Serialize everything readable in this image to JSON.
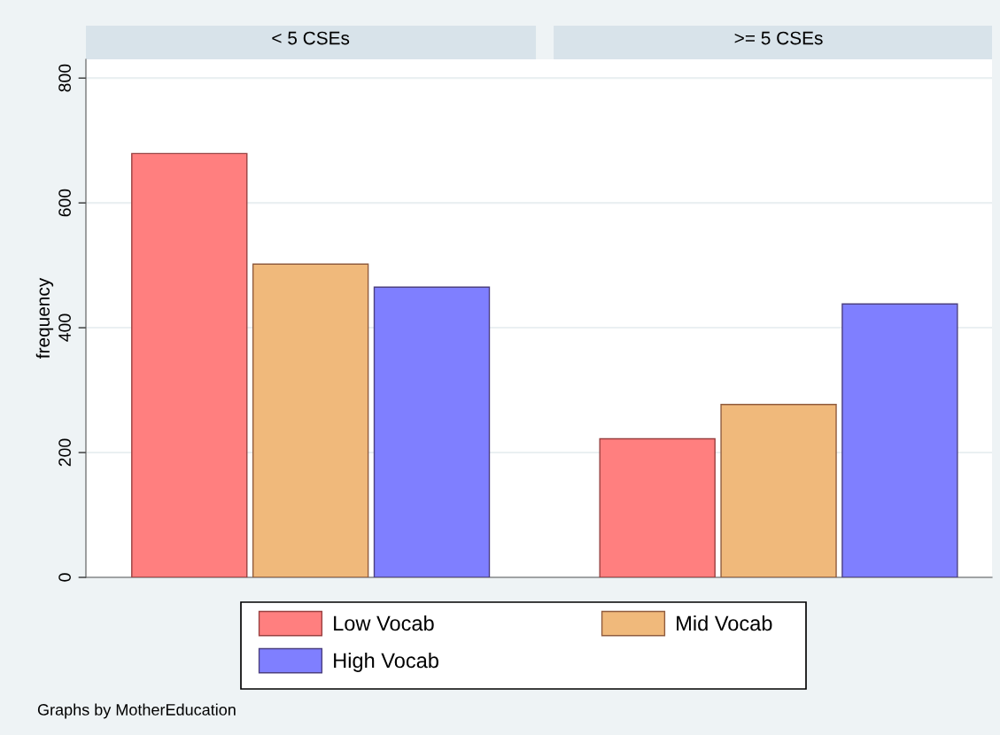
{
  "chart_data": {
    "type": "bar",
    "ylabel": "frequency",
    "categories": [
      "< 5 CSEs",
      ">= 5 CSEs"
    ],
    "series": [
      {
        "name": "Low Vocab",
        "color": "#ff7f7f",
        "values": [
          679,
          222
        ]
      },
      {
        "name": "Mid Vocab",
        "color": "#f0b97b",
        "values": [
          502,
          277
        ]
      },
      {
        "name": "High Vocab",
        "color": "#7f7fff",
        "values": [
          465,
          438
        ]
      }
    ],
    "ylim": [
      0,
      830
    ],
    "yticks": [
      0,
      200,
      400,
      600,
      800
    ],
    "grid": "y",
    "legend": "bottom",
    "annotations": [
      "Graphs by MotherEducation"
    ]
  }
}
